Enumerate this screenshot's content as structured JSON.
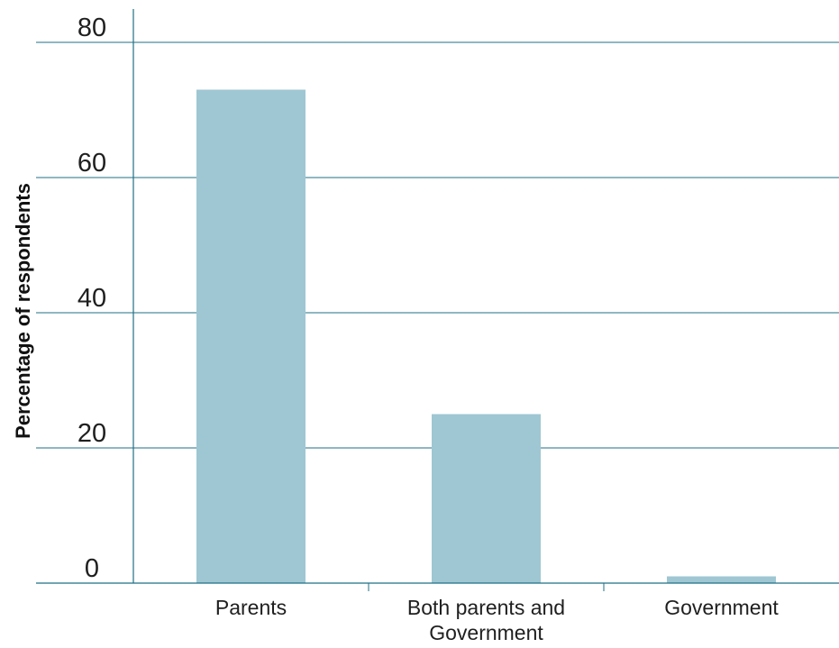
{
  "chart_data": {
    "type": "bar",
    "title": "",
    "xlabel": "",
    "ylabel": "Percentage of respondents",
    "categories": [
      [
        "Parents"
      ],
      [
        "Both parents and",
        "Government"
      ],
      [
        "Government"
      ]
    ],
    "values": [
      73,
      25,
      1
    ],
    "ylim": [
      0,
      80
    ],
    "yticks": [
      0,
      20,
      40,
      60,
      80
    ],
    "grid": true,
    "legend": "none",
    "colors": {
      "bar": "#9fc6d3",
      "grid": "#1f6f86",
      "axis": "#1f6f86",
      "text": "#1f1f1f"
    }
  }
}
